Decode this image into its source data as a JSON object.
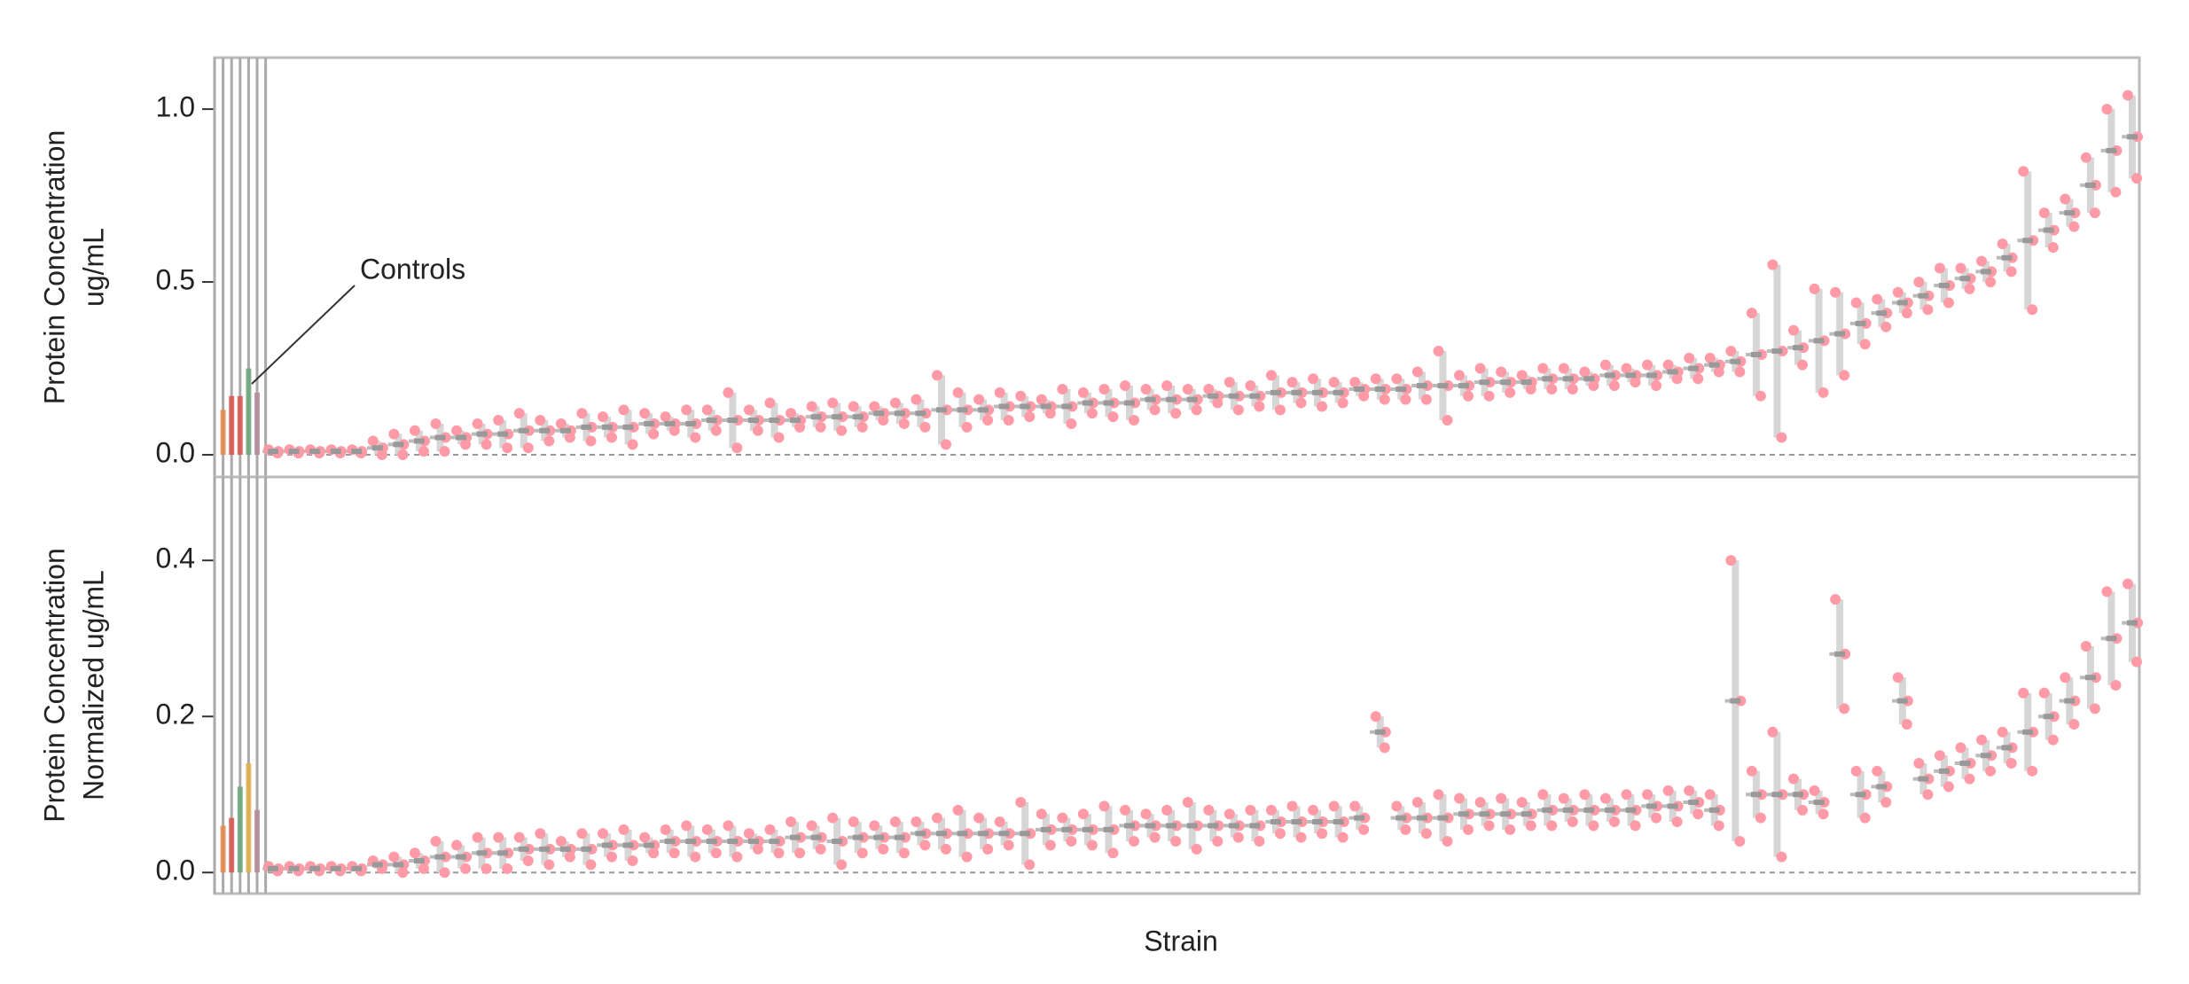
{
  "chart_data": [
    {
      "type": "strip",
      "ylabel": [
        "Protein Concentration",
        "ug/mL"
      ],
      "annotation": "Controls",
      "ylim": [
        -0.064,
        1.149
      ],
      "yticks": [
        {
          "value": 0,
          "label": "0.0"
        },
        0.5,
        {
          "value": 1,
          "label": "1.0"
        }
      ],
      "color": "#ff9aa6",
      "controls": {
        "values": [
          0.13,
          0.17,
          0.17,
          0.25,
          0.18
        ],
        "colors": [
          "#e8874a",
          "#d9534f",
          "#d9534f",
          "#6aa67a",
          "#b58a9a"
        ]
      },
      "values": [
        0.01,
        0.01,
        0.01,
        0.01,
        0.01,
        0.02,
        0.03,
        0.04,
        0.05,
        0.05,
        0.06,
        0.06,
        0.07,
        0.07,
        0.07,
        0.08,
        0.08,
        0.08,
        0.09,
        0.09,
        0.09,
        0.1,
        0.1,
        0.1,
        0.1,
        0.1,
        0.11,
        0.11,
        0.11,
        0.12,
        0.12,
        0.12,
        0.13,
        0.13,
        0.13,
        0.14,
        0.14,
        0.14,
        0.14,
        0.15,
        0.15,
        0.15,
        0.16,
        0.16,
        0.16,
        0.17,
        0.17,
        0.17,
        0.18,
        0.18,
        0.18,
        0.18,
        0.19,
        0.19,
        0.19,
        0.2,
        0.2,
        0.2,
        0.21,
        0.21,
        0.21,
        0.22,
        0.22,
        0.22,
        0.23,
        0.23,
        0.23,
        0.24,
        0.25,
        0.26,
        0.27,
        0.29,
        0.3,
        0.31,
        0.33,
        0.35,
        0.38,
        0.41,
        0.44,
        0.46,
        0.49,
        0.51,
        0.53,
        0.57,
        0.62,
        0.65,
        0.7,
        0.78,
        0.88,
        0.92
      ],
      "spreads": [
        0.005,
        0.005,
        0.005,
        0.005,
        0.005,
        0.02,
        0.03,
        0.03,
        0.04,
        0.02,
        0.03,
        0.04,
        0.05,
        0.03,
        0.02,
        0.04,
        0.03,
        0.05,
        0.03,
        0.02,
        0.04,
        0.03,
        0.08,
        0.03,
        0.05,
        0.02,
        0.03,
        0.04,
        0.03,
        0.02,
        0.03,
        0.04,
        0.1,
        0.05,
        0.03,
        0.04,
        0.03,
        0.02,
        0.05,
        0.03,
        0.04,
        0.05,
        0.03,
        0.04,
        0.03,
        0.02,
        0.04,
        0.03,
        0.05,
        0.03,
        0.04,
        0.03,
        0.02,
        0.03,
        0.03,
        0.04,
        0.1,
        0.03,
        0.04,
        0.03,
        0.02,
        0.03,
        0.03,
        0.02,
        0.03,
        0.02,
        0.03,
        0.02,
        0.03,
        0.02,
        0.03,
        0.12,
        0.25,
        0.05,
        0.15,
        0.12,
        0.06,
        0.04,
        0.03,
        0.04,
        0.05,
        0.03,
        0.03,
        0.04,
        0.2,
        0.05,
        0.04,
        0.08,
        0.12,
        0.12
      ]
    },
    {
      "type": "strip",
      "ylabel": [
        "Protein Concentration",
        "Normalized ug/mL"
      ],
      "xlabel": "Strain",
      "ylim": [
        -0.027,
        0.507
      ],
      "yticks": [
        {
          "value": 0,
          "label": "0.0"
        },
        0.2,
        0.4
      ],
      "color": "#ff9aa6",
      "controls": {
        "values": [
          0.06,
          0.07,
          0.11,
          0.14,
          0.08
        ],
        "colors": [
          "#e8874a",
          "#d9534f",
          "#6aa67a",
          "#e0b04a",
          "#b58a9a"
        ]
      },
      "values": [
        0.005,
        0.005,
        0.005,
        0.005,
        0.005,
        0.01,
        0.01,
        0.015,
        0.02,
        0.02,
        0.025,
        0.025,
        0.03,
        0.03,
        0.03,
        0.03,
        0.035,
        0.035,
        0.035,
        0.04,
        0.04,
        0.04,
        0.04,
        0.04,
        0.04,
        0.045,
        0.045,
        0.04,
        0.045,
        0.045,
        0.045,
        0.05,
        0.05,
        0.05,
        0.05,
        0.05,
        0.05,
        0.055,
        0.055,
        0.055,
        0.055,
        0.06,
        0.06,
        0.06,
        0.06,
        0.06,
        0.06,
        0.06,
        0.065,
        0.065,
        0.065,
        0.065,
        0.07,
        0.18,
        0.07,
        0.07,
        0.07,
        0.075,
        0.075,
        0.075,
        0.075,
        0.08,
        0.08,
        0.08,
        0.08,
        0.08,
        0.085,
        0.085,
        0.09,
        0.08,
        0.22,
        0.1,
        0.1,
        0.1,
        0.09,
        0.28,
        0.1,
        0.11,
        0.22,
        0.12,
        0.13,
        0.14,
        0.15,
        0.16,
        0.18,
        0.2,
        0.22,
        0.25,
        0.3,
        0.32
      ],
      "spreads": [
        0.003,
        0.003,
        0.003,
        0.003,
        0.003,
        0.005,
        0.01,
        0.01,
        0.02,
        0.015,
        0.02,
        0.02,
        0.015,
        0.02,
        0.01,
        0.02,
        0.015,
        0.02,
        0.01,
        0.015,
        0.02,
        0.015,
        0.02,
        0.01,
        0.015,
        0.02,
        0.015,
        0.03,
        0.02,
        0.015,
        0.02,
        0.015,
        0.02,
        0.03,
        0.02,
        0.015,
        0.04,
        0.02,
        0.015,
        0.02,
        0.03,
        0.02,
        0.015,
        0.02,
        0.03,
        0.02,
        0.015,
        0.02,
        0.015,
        0.02,
        0.015,
        0.02,
        0.015,
        0.02,
        0.015,
        0.02,
        0.03,
        0.02,
        0.015,
        0.02,
        0.015,
        0.02,
        0.015,
        0.02,
        0.015,
        0.02,
        0.015,
        0.02,
        0.015,
        0.02,
        0.18,
        0.03,
        0.08,
        0.02,
        0.015,
        0.07,
        0.03,
        0.02,
        0.03,
        0.02,
        0.02,
        0.02,
        0.02,
        0.02,
        0.05,
        0.03,
        0.03,
        0.04,
        0.06,
        0.05
      ]
    }
  ]
}
